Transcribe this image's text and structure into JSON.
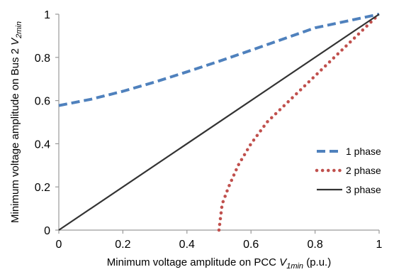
{
  "chart_data": {
    "type": "line",
    "xlabel": "Minimum voltage amplitude on PCC V1min (p.u.)",
    "xlabel_parts": {
      "main": "Minimum voltage amplitude on PCC ",
      "var": "V",
      "sub": "1min",
      "unit": " (p.u.)"
    },
    "ylabel": "Minimum voltage amplitude on Bus 2 V2min (p.u.)",
    "ylabel_parts": {
      "main": "Minimum voltage amplitude on Bus 2 ",
      "var": "V",
      "sub": "2min",
      "unit": ""
    },
    "xlim": [
      0,
      1
    ],
    "ylim": [
      0,
      1
    ],
    "x_ticks": [
      0,
      0.2,
      0.4,
      0.6,
      0.8,
      1
    ],
    "x_tick_labels": [
      "0",
      "0.2",
      "0.4",
      "0.6",
      "0.8",
      "1"
    ],
    "y_ticks": [
      0,
      0.2,
      0.4,
      0.6,
      0.8,
      1
    ],
    "y_tick_labels": [
      "0",
      "0.2",
      "0.4",
      "0.6",
      "0.8",
      "1"
    ],
    "grid": false,
    "legend_position": "bottom-right",
    "series": [
      {
        "name": "1 phase",
        "color": "#4f81bd",
        "style": "dashed",
        "points": [
          [
            0,
            0.577
          ],
          [
            0.1,
            0.606
          ],
          [
            0.2,
            0.643
          ],
          [
            0.3,
            0.686
          ],
          [
            0.4,
            0.733
          ],
          [
            0.5,
            0.782
          ],
          [
            0.6,
            0.833
          ],
          [
            0.7,
            0.885
          ],
          [
            0.8,
            0.937
          ],
          [
            0.9,
            0.968
          ],
          [
            1.0,
            1.0
          ]
        ]
      },
      {
        "name": "2 phase",
        "color": "#c0504d",
        "style": "dotted",
        "points": [
          [
            0.5,
            0
          ],
          [
            0.51,
            0.12
          ],
          [
            0.53,
            0.2
          ],
          [
            0.56,
            0.3
          ],
          [
            0.6,
            0.4
          ],
          [
            0.65,
            0.5
          ],
          [
            0.72,
            0.6
          ],
          [
            0.79,
            0.7
          ],
          [
            0.86,
            0.8
          ],
          [
            0.93,
            0.9
          ],
          [
            1.0,
            1.0
          ]
        ]
      },
      {
        "name": "3 phase",
        "color": "#333333",
        "style": "solid",
        "points": [
          [
            0,
            0
          ],
          [
            1,
            1
          ]
        ]
      }
    ]
  }
}
